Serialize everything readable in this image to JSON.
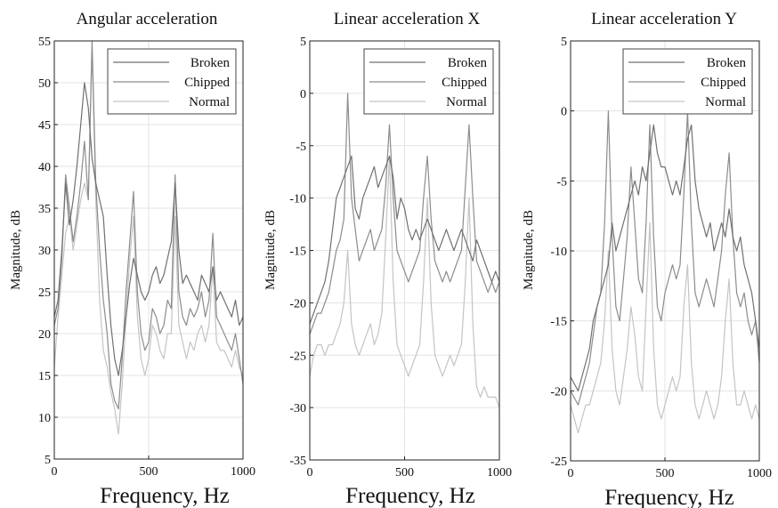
{
  "figure": {
    "colors": {
      "Broken": "#707070",
      "Chipped": "#8c8c8c",
      "Normal": "#c4c4c4",
      "grid": "#e3e3e3",
      "axes": "#222222"
    }
  },
  "chart_data": [
    {
      "type": "line",
      "title": "Angular acceleration",
      "xlabel": "Frequency, Hz",
      "ylabel": "Magnitude, dB",
      "xlim": [
        0,
        1000
      ],
      "ylim": [
        5,
        55
      ],
      "xticks": [
        0,
        500,
        1000
      ],
      "yticks": [
        5,
        10,
        15,
        20,
        25,
        30,
        35,
        40,
        45,
        50,
        55
      ],
      "grid": true,
      "legend_position": "top-right",
      "series": [
        {
          "name": "Broken",
          "x": [
            0,
            20,
            40,
            60,
            80,
            100,
            120,
            140,
            160,
            180,
            200,
            220,
            240,
            260,
            280,
            300,
            320,
            340,
            360,
            380,
            400,
            420,
            440,
            460,
            480,
            500,
            520,
            540,
            560,
            580,
            600,
            620,
            640,
            660,
            680,
            700,
            720,
            740,
            760,
            780,
            800,
            820,
            840,
            860,
            880,
            900,
            920,
            940,
            960,
            980,
            1000
          ],
          "values": [
            22,
            24,
            30,
            38,
            33,
            36,
            40,
            45,
            50,
            47,
            41,
            38,
            36,
            34,
            27,
            21,
            17,
            15,
            18,
            22,
            26,
            29,
            27,
            25,
            24,
            25,
            27,
            28,
            26,
            27,
            29,
            31,
            38,
            30,
            26,
            27,
            26,
            25,
            24,
            27,
            26,
            25,
            28,
            24,
            25,
            24,
            23,
            22,
            24,
            21,
            22
          ]
        },
        {
          "name": "Chipped",
          "x": [
            0,
            20,
            40,
            60,
            80,
            100,
            120,
            140,
            160,
            180,
            200,
            220,
            240,
            260,
            280,
            300,
            320,
            340,
            360,
            380,
            400,
            420,
            440,
            460,
            480,
            500,
            520,
            540,
            560,
            580,
            600,
            620,
            640,
            660,
            680,
            700,
            720,
            740,
            760,
            780,
            800,
            820,
            840,
            860,
            880,
            900,
            920,
            940,
            960,
            980,
            1000
          ],
          "values": [
            21,
            23,
            29,
            39,
            35,
            31,
            34,
            38,
            43,
            36,
            55,
            38,
            30,
            24,
            20,
            14,
            12,
            11,
            17,
            25,
            31,
            37,
            25,
            20,
            18,
            19,
            23,
            22,
            20,
            21,
            24,
            23,
            39,
            25,
            22,
            21,
            23,
            22,
            23,
            25,
            22,
            24,
            32,
            22,
            21,
            20,
            19,
            18,
            20,
            17,
            14
          ]
        },
        {
          "name": "Normal",
          "x": [
            0,
            20,
            40,
            60,
            80,
            100,
            120,
            140,
            160,
            180,
            200,
            220,
            240,
            260,
            280,
            300,
            320,
            340,
            360,
            380,
            400,
            420,
            440,
            460,
            480,
            500,
            520,
            540,
            560,
            580,
            600,
            620,
            640,
            660,
            680,
            700,
            720,
            740,
            760,
            780,
            800,
            820,
            840,
            860,
            880,
            900,
            920,
            940,
            960,
            980,
            1000
          ],
          "values": [
            16,
            22,
            27,
            32,
            34,
            30,
            33,
            36,
            38,
            36,
            54,
            36,
            24,
            18,
            16,
            13,
            11,
            8,
            14,
            22,
            29,
            34,
            22,
            17,
            15,
            17,
            21,
            20,
            18,
            17,
            20,
            20,
            34,
            21,
            19,
            17,
            19,
            18,
            20,
            21,
            19,
            21,
            28,
            19,
            18,
            18,
            17,
            16,
            18,
            16,
            15
          ]
        }
      ]
    },
    {
      "type": "line",
      "title": "Linear acceleration X",
      "xlabel": "Frequency, Hz",
      "ylabel": "Magnitude, dB",
      "xlim": [
        0,
        1000
      ],
      "ylim": [
        -35,
        5
      ],
      "xticks": [
        0,
        500,
        1000
      ],
      "yticks": [
        -35,
        -30,
        -25,
        -20,
        -15,
        -10,
        -5,
        0,
        5
      ],
      "grid": true,
      "legend_position": "top-right",
      "series": [
        {
          "name": "Broken",
          "x": [
            0,
            20,
            40,
            60,
            80,
            100,
            120,
            140,
            160,
            180,
            200,
            220,
            240,
            260,
            280,
            300,
            320,
            340,
            360,
            380,
            400,
            420,
            440,
            460,
            480,
            500,
            520,
            540,
            560,
            580,
            600,
            620,
            640,
            660,
            680,
            700,
            720,
            740,
            760,
            780,
            800,
            820,
            840,
            860,
            880,
            900,
            920,
            940,
            960,
            980,
            1000
          ],
          "values": [
            -22,
            -21,
            -20,
            -19,
            -18,
            -16,
            -13,
            -10,
            -9,
            -8,
            -7,
            -6,
            -11,
            -12,
            -10,
            -9,
            -8,
            -7,
            -9,
            -8,
            -7,
            -6,
            -8,
            -12,
            -10,
            -11,
            -13,
            -14,
            -13,
            -14,
            -13,
            -12,
            -13,
            -14,
            -15,
            -14,
            -13,
            -14,
            -15,
            -14,
            -13,
            -14,
            -15,
            -16,
            -14,
            -15,
            -16,
            -17,
            -18,
            -17,
            -18
          ]
        },
        {
          "name": "Chipped",
          "x": [
            0,
            20,
            40,
            60,
            80,
            100,
            120,
            140,
            160,
            180,
            200,
            220,
            240,
            260,
            280,
            300,
            320,
            340,
            360,
            380,
            400,
            420,
            440,
            460,
            480,
            500,
            520,
            540,
            560,
            580,
            600,
            620,
            640,
            660,
            680,
            700,
            720,
            740,
            760,
            780,
            800,
            820,
            840,
            860,
            880,
            900,
            920,
            940,
            960,
            980,
            1000
          ],
          "values": [
            -23,
            -22,
            -21,
            -21,
            -20,
            -19,
            -17,
            -15,
            -14,
            -12,
            0,
            -10,
            -13,
            -16,
            -15,
            -14,
            -13,
            -15,
            -14,
            -13,
            -9,
            -3,
            -10,
            -15,
            -16,
            -17,
            -18,
            -17,
            -16,
            -15,
            -10,
            -6,
            -12,
            -16,
            -17,
            -18,
            -17,
            -18,
            -17,
            -16,
            -15,
            -9,
            -3,
            -10,
            -16,
            -17,
            -18,
            -19,
            -18,
            -19,
            -18
          ]
        },
        {
          "name": "Normal",
          "x": [
            0,
            20,
            40,
            60,
            80,
            100,
            120,
            140,
            160,
            180,
            200,
            220,
            240,
            260,
            280,
            300,
            320,
            340,
            360,
            380,
            400,
            420,
            440,
            460,
            480,
            500,
            520,
            540,
            560,
            580,
            600,
            620,
            640,
            660,
            680,
            700,
            720,
            740,
            760,
            780,
            800,
            820,
            840,
            860,
            880,
            900,
            920,
            940,
            960,
            980,
            1000
          ],
          "values": [
            -27,
            -25,
            -24,
            -24,
            -25,
            -24,
            -24,
            -23,
            -22,
            -20,
            -15,
            -22,
            -24,
            -25,
            -24,
            -23,
            -22,
            -24,
            -23,
            -21,
            -14,
            -6,
            -18,
            -24,
            -25,
            -26,
            -27,
            -26,
            -25,
            -24,
            -18,
            -10,
            -20,
            -25,
            -26,
            -27,
            -26,
            -25,
            -26,
            -25,
            -24,
            -18,
            -10,
            -22,
            -28,
            -29,
            -28,
            -29,
            -29,
            -29,
            -30
          ]
        }
      ]
    },
    {
      "type": "line",
      "title": "Linear acceleration Y",
      "xlabel": "Frequency, Hz",
      "ylabel": "Magnitude, dB",
      "xlim": [
        0,
        1000
      ],
      "ylim": [
        -25,
        5
      ],
      "xticks": [
        0,
        500,
        1000
      ],
      "yticks": [
        -25,
        -20,
        -15,
        -10,
        -5,
        0,
        5
      ],
      "grid": true,
      "legend_position": "top-right",
      "series": [
        {
          "name": "Broken",
          "x": [
            0,
            20,
            40,
            60,
            80,
            100,
            120,
            140,
            160,
            180,
            200,
            220,
            240,
            260,
            280,
            300,
            320,
            340,
            360,
            380,
            400,
            420,
            440,
            460,
            480,
            500,
            520,
            540,
            560,
            580,
            600,
            620,
            640,
            660,
            680,
            700,
            720,
            740,
            760,
            780,
            800,
            820,
            840,
            860,
            880,
            900,
            920,
            940,
            960,
            980,
            1000
          ],
          "values": [
            -19,
            -19.5,
            -20,
            -19,
            -18,
            -17,
            -15,
            -14,
            -13,
            -12,
            -11,
            -8,
            -10,
            -9,
            -8,
            -7,
            -6,
            -5,
            -6,
            -4,
            -5,
            -3,
            -1,
            -3,
            -4,
            -4,
            -5,
            -6,
            -5,
            -6,
            -4,
            -2,
            -1,
            -5,
            -7,
            -8,
            -9,
            -8,
            -10,
            -9,
            -8,
            -9,
            -7,
            -9,
            -10,
            -9,
            -11,
            -12,
            -13,
            -15,
            -17
          ]
        },
        {
          "name": "Chipped",
          "x": [
            0,
            20,
            40,
            60,
            80,
            100,
            120,
            140,
            160,
            180,
            200,
            220,
            240,
            260,
            280,
            300,
            320,
            340,
            360,
            380,
            400,
            420,
            440,
            460,
            480,
            500,
            520,
            540,
            560,
            580,
            600,
            620,
            640,
            660,
            680,
            700,
            720,
            740,
            760,
            780,
            800,
            820,
            840,
            860,
            880,
            900,
            920,
            940,
            960,
            980,
            1000
          ],
          "values": [
            -20,
            -20.5,
            -21,
            -20,
            -19,
            -18,
            -16,
            -14,
            -13,
            -8,
            0,
            -9,
            -14,
            -15,
            -12,
            -9,
            -4,
            -8,
            -12,
            -13,
            -8,
            -1,
            -9,
            -14,
            -15,
            -13,
            -12,
            -11,
            -12,
            -11,
            -6,
            0,
            -8,
            -13,
            -14,
            -13,
            -12,
            -13,
            -14,
            -12,
            -10,
            -6,
            -3,
            -9,
            -13,
            -14,
            -13,
            -15,
            -16,
            -15,
            -18
          ]
        },
        {
          "name": "Normal",
          "x": [
            0,
            20,
            40,
            60,
            80,
            100,
            120,
            140,
            160,
            180,
            200,
            220,
            240,
            260,
            280,
            300,
            320,
            340,
            360,
            380,
            400,
            420,
            440,
            460,
            480,
            500,
            520,
            540,
            560,
            580,
            600,
            620,
            640,
            660,
            680,
            700,
            720,
            740,
            760,
            780,
            800,
            820,
            840,
            860,
            880,
            900,
            920,
            940,
            960,
            980,
            1000
          ],
          "values": [
            -21,
            -22,
            -23,
            -22,
            -21,
            -21,
            -20,
            -19,
            -18,
            -15,
            -10,
            -17,
            -20,
            -21,
            -19,
            -17,
            -14,
            -16,
            -19,
            -20,
            -14,
            -8,
            -17,
            -21,
            -22,
            -21,
            -20,
            -19,
            -20,
            -19,
            -14,
            -11,
            -18,
            -21,
            -22,
            -21,
            -20,
            -21,
            -22,
            -21,
            -19,
            -15,
            -12,
            -18,
            -21,
            -21,
            -20,
            -21,
            -22,
            -21,
            -22
          ]
        }
      ]
    }
  ]
}
